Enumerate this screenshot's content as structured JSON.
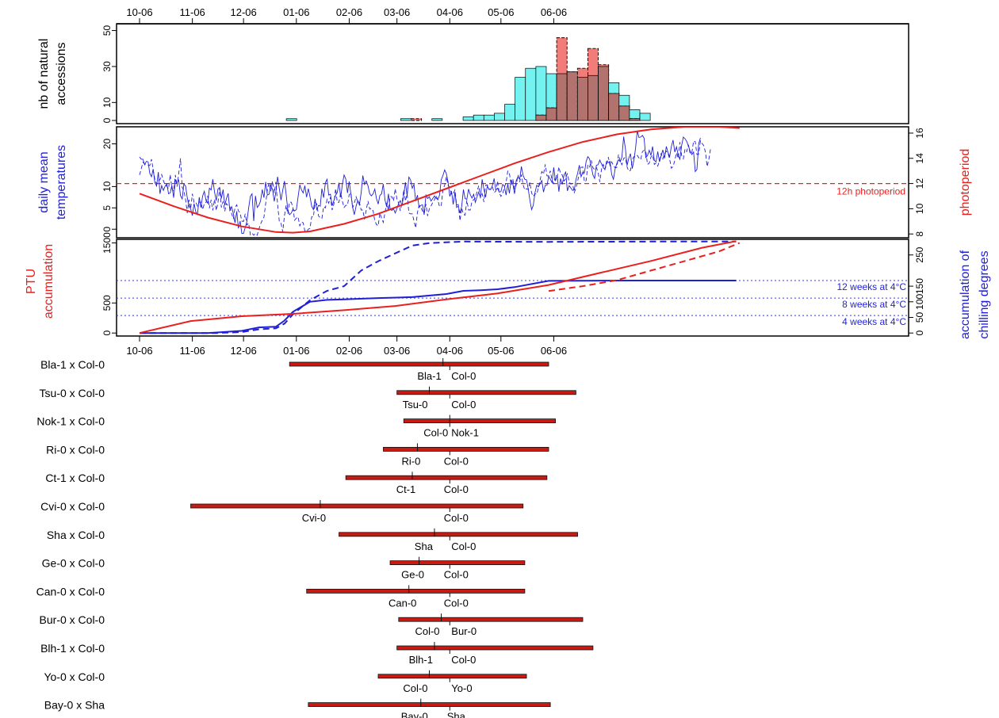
{
  "colors": {
    "temperature": "#1f1fd8",
    "photoperiod": "#e8201e",
    "hist_cyan": "#74f2f0",
    "hist_red": "#f27c78",
    "hist_overlap": "#b2736f",
    "bar_fill": "#c71a12",
    "ref_dotted": "#3a3ae0"
  },
  "date_ticks": [
    "10-06",
    "11-06",
    "12-06",
    "01-06",
    "02-06",
    "03-06",
    "04-06",
    "05-06",
    "06-06"
  ],
  "chart_data": [
    {
      "type": "bar",
      "panel": "histogram",
      "ylabel": [
        "nb of natural",
        "accessions"
      ],
      "yticks": [
        0,
        10,
        30,
        50
      ],
      "ylim": [
        0,
        52
      ],
      "bin_days": 6.1,
      "bin_start_day": 86.1,
      "series": [
        {
          "name_style": "cyan",
          "values": [
            1,
            0,
            0,
            0,
            0,
            0,
            0,
            0,
            0,
            0,
            0,
            1,
            0,
            0,
            1,
            0,
            0,
            2,
            3,
            3,
            4,
            9,
            24,
            29,
            30,
            26,
            26,
            27,
            24,
            25,
            30,
            21,
            14,
            6,
            4
          ]
        },
        {
          "name_style": "red",
          "values": [
            0,
            0,
            0,
            0,
            0,
            0,
            0,
            0,
            0,
            0,
            0,
            0,
            1,
            0,
            0,
            0,
            0,
            0,
            0,
            0,
            0,
            0,
            0,
            0,
            3,
            7,
            46,
            27,
            29,
            40,
            31,
            15,
            8,
            1,
            0
          ]
        }
      ]
    },
    {
      "type": "line",
      "panel": "temperature",
      "ylabel_left": [
        "daily mean",
        "temperatures"
      ],
      "ylabel_right": "photoperiod",
      "yticks_left": [
        0,
        5,
        10,
        20
      ],
      "yticks_right": [
        8,
        10,
        12,
        14,
        16
      ],
      "ylim_left": [
        -2,
        24
      ],
      "ylim_right": [
        7.7,
        16.5
      ],
      "annotation": "12h photoperiod",
      "photoperiod_ref": 12,
      "photoperiod_hours": {
        "days": [
          0,
          20,
          40,
          60,
          80,
          90,
          100,
          120,
          140,
          160,
          180,
          200,
          220,
          240,
          260,
          280,
          300,
          320,
          340,
          352
        ],
        "hours": [
          11.2,
          10.2,
          9.3,
          8.6,
          8.15,
          8.1,
          8.2,
          8.8,
          9.6,
          10.6,
          11.6,
          12.6,
          13.6,
          14.5,
          15.3,
          15.9,
          16.3,
          16.5,
          16.5,
          16.4
        ]
      },
      "temperature_solid": [
        16.9,
        16.4,
        16.4,
        15.1,
        15.9,
        15.8,
        13.1,
        12.3,
        14.1,
        10.9,
        10.1,
        13.4,
        8.3,
        10.2,
        9.1,
        10.1,
        10.6,
        8.3,
        8.5,
        10.3,
        7.4,
        11.6,
        10.9,
        11.5,
        7.9,
        7.1,
        10.6,
        10.1,
        7.4,
        5.4,
        4.8,
        3.2,
        6.0,
        4.1,
        3.5,
        7.5,
        5.1,
        7.8,
        8.9,
        6.7,
        6.1,
        9.6,
        9.2,
        11.7,
        8.7,
        6.7,
        9.4,
        9.8,
        7.2,
        9.3,
        5.6,
        7.2,
        8.4,
        4.4,
        5.3,
        3.7,
        1.5,
        4.2,
        0.2,
        1.9,
        -1.0,
        -1.0,
        0.4,
        1.8,
        5.0,
        7.7,
        8.3,
        1.9,
        7.8,
        5.1,
        5.6,
        6.6,
        9.3,
        7.4,
        11.1,
        8.0,
        8.2,
        10.4,
        9.3,
        6.5,
        8.8,
        12.3,
        9.5,
        6.8,
        9.1,
        11.3,
        8.2,
        4.5,
        3.4,
        3.8,
        4.7,
        4.3,
        4.6,
        7.5,
        10.4,
        9.2,
        8.5,
        10.2,
        7.5,
        9.5,
        7.6,
        5.4,
        4.6,
        7.1,
        4.6,
        5.6,
        5.4,
        9.5,
        7.4,
        10.9,
        11.7,
        8.0,
        8.2,
        5.5,
        6.7,
        8.0,
        8.6,
        10.9,
        7.5,
        10.6,
        12.7,
        11.8,
        8.5,
        11.2,
        8.2,
        5.1,
        3.4,
        5.4,
        6.7,
        5.7,
        8.5,
        12.6,
        10.5,
        11.3,
        10.2,
        8.3,
        7.8,
        8.3,
        9.4,
        7.2,
        5.9,
        7.9,
        8.3,
        10.6,
        6.8,
        5.2,
        8.3,
        4.7,
        4.4,
        4.8,
        3.8,
        4.8,
        6.1,
        6.7,
        5.5,
        8.2,
        11.0,
        7.8,
        12.2,
        11.6,
        9.6,
        10.5,
        6.6,
        8.0,
        5.1,
        5.6,
        5.7,
        3.4,
        8.0,
        7.2,
        7.6,
        6.6,
        7.2,
        7.8,
        7.3,
        6.9,
        8.0,
        11.6,
        12.6,
        13.9,
        13.0,
        11.1,
        7.7,
        8.9,
        5.8,
        8.7,
        5.1,
        5.4,
        3.8,
        5.3,
        9.3,
        7.2,
        7.0,
        9.4,
        8.1,
        7.3,
        8.2,
        6.3,
        7.6,
        8.7,
        7.4,
        11.7,
        9.4,
        7.5,
        10.1,
        9.4,
        9.3,
        10.2,
        11.9,
        9.2,
        9.6,
        8.7,
        8.8,
        10.5,
        10.1,
        8.0,
        10.6,
        8.4,
        11.6,
        10.6,
        8.3,
        11.4,
        12.3,
        11.7,
        14.7,
        12.6,
        11.7,
        11.6,
        9.5,
        6.8,
        4.6,
        5.6,
        8.6,
        10.3,
        9.9,
        10.7,
        11.4,
        8.7,
        10.3,
        10.3,
        12.4,
        11.7,
        10.9,
        14.5,
        11.3,
        12.6,
        8.8,
        11.9,
        10.5,
        12.7,
        13.4,
        9.0,
        10.2,
        9.7,
        9.1,
        9.2,
        11.6,
        13.1,
        15.0,
        12.3,
        13.3,
        13.2,
        15.9,
        17.0,
        16.5,
        14.6,
        12.7,
        11.9,
        15.0,
        15.1,
        16.2,
        15.3,
        14.5,
        14.0,
        15.9,
        15.6,
        15.9,
        12.8,
        11.7,
        14.2,
        15.4,
        16.3,
        15.8,
        16.9,
        21.7,
        18.9,
        14.9,
        16.6,
        17.7,
        14.2,
        16.1,
        19.0,
        23.1,
        21.5,
        21.6,
        22.0,
        21.3,
        16.8,
        17.3,
        18.5,
        17.3,
        19.4,
        16.1,
        15.8,
        18.2,
        15.8,
        17.3,
        18.6,
        16.6,
        19.4,
        18.0,
        17.0,
        19.4,
        20.9,
        18.1,
        19.3,
        17.3,
        16.4,
        19.6,
        21.6,
        21.2,
        20.6,
        19.5,
        18.3,
        17.5,
        18.1,
        13.5,
        14.0,
        20.0,
        21.4
      ],
      "temperature_dashed": [
        12.7,
        14.2,
        15.7,
        15.3,
        15.1,
        15.0,
        14.9,
        16.4,
        13.9,
        11.7,
        10.6,
        11.4,
        11.6,
        12.8,
        11.4,
        10.3,
        10.1,
        9.5,
        12.8,
        9.5,
        8.9,
        12.7,
        10.0,
        13.0,
        16.6,
        9.8,
        9.1,
        6.9,
        3.8,
        6.9,
        4.8,
        8.3,
        6.3,
        6.4,
        5.4,
        6.4,
        6.3,
        4.6,
        6.0,
        6.3,
        7.8,
        4.9,
        6.9,
        4.4,
        7.0,
        4.4,
        6.2,
        9.7,
        5.1,
        6.5,
        4.2,
        6.0,
        5.5,
        5.3,
        3.7,
        2.4,
        5.1,
        5.7,
        4.3,
        3.8,
        1.9,
        1.8,
        3.6,
        1.0,
        1.4,
        -1.3,
        -0.9,
        -1.4,
        -1.0,
        -1.4,
        0.0,
        1.2,
        2.1,
        2.8,
        6.0,
        9.3,
        10.9,
        8.9,
        11.3,
        8.5,
        11.1,
        5.8,
        1.8,
        1.5,
        -0.6,
        3.2,
        5.6,
        3.6,
        6.4,
        6.3,
        5.1,
        2.1,
        2.6,
        2.9,
        0.8,
        1.7,
        1.5,
        -0.4,
        -0.6,
        0.0,
        0.2,
        2.9,
        2.9,
        6.3,
        5.9,
        3.1,
        2.7,
        2.5,
        5.3,
        5.0,
        7.0,
        6.1,
        7.5,
        4.5,
        5.9,
        9.5,
        6.3,
        6.3,
        8.5,
        6.5,
        5.1,
        5.6,
        5.6,
        8.1,
        8.5,
        5.0,
        6.1,
        7.6,
        6.4,
        6.3,
        4.5,
        4.5,
        2.3,
        4.5,
        6.6,
        4.7,
        4.9,
        4.3,
        2.0,
        1.1,
        0.8,
        3.8,
        2.6,
        1.6,
        3.9,
        6.2,
        4.4,
        7.7,
        7.6,
        6.6,
        9.5,
        7.1,
        6.1,
        4.3,
        6.2,
        9.3,
        6.6,
        8.3,
        3.8,
        3.6,
        3.6,
        2.0,
        0.3,
        3.9,
        5.6,
        5.1,
        4.3,
        3.7,
        5.9,
        3.1,
        4.8,
        5.4,
        6.3,
        6.9,
        7.9,
        6.8,
        5.3,
        5.5,
        9.3,
        10.3,
        12.3,
        10.3,
        9.8,
        8.1,
        8.3,
        9.2,
        5.7,
        5.8,
        2.0,
        5.0,
        3.5,
        3.3,
        6.8,
        4.5,
        4.5,
        6.6,
        6.9,
        7.3,
        8.8,
        10.2,
        7.4,
        8.3,
        6.4,
        10.3,
        10.4,
        9.3,
        9.4,
        10.0,
        8.6,
        8.9,
        11.3,
        8.6,
        7.7,
        8.3,
        9.8,
        10.9,
        13.6,
        13.1,
        10.3,
        11.8,
        9.3,
        10.4,
        12.7,
        11.1,
        12.8,
        10.4,
        9.2,
        9.5,
        9.3,
        11.0,
        8.5,
        7.7,
        8.3,
        8.2,
        9.8,
        11.6,
        13.5,
        12.9,
        15.2,
        12.5,
        12.5,
        13.7,
        11.4,
        10.7,
        12.7,
        12.4,
        14.6,
        13.0,
        12.7,
        11.3,
        11.8,
        13.1,
        11.1,
        10.6,
        10.7,
        8.6,
        9.6,
        11.3,
        12.9,
        14.5,
        14.6,
        11.1,
        11.4,
        15.1,
        14.6,
        16.1,
        14.4,
        14.0,
        14.5,
        13.3,
        11.1,
        14.0,
        15.2,
        14.0,
        15.2,
        16.9,
        14.9,
        15.8,
        14.9,
        14.4,
        14.5,
        17.5,
        15.9,
        15.1,
        16.6,
        16.8,
        14.6,
        13.6,
        13.8,
        16.3,
        17.0,
        16.9,
        17.3,
        16.7,
        16.3,
        18.2,
        18.5,
        18.3,
        15.2,
        15.5,
        16.9,
        17.4,
        15.2,
        15.5,
        14.8,
        16.0,
        17.8,
        16.5,
        17.7,
        18.3,
        17.8,
        16.4,
        14.3,
        14.7,
        16.1,
        17.9,
        16.6,
        20.4,
        17.3,
        16.5,
        18.8,
        18.2,
        19.8,
        17.7,
        17.9,
        20.7,
        20.5,
        17.5,
        17.6,
        20.7,
        20.1,
        19.6,
        18.0,
        14.7,
        16.4,
        19.0
      ]
    },
    {
      "type": "line",
      "panel": "accumulation",
      "ylabel_left": [
        "PTU",
        "accumulation"
      ],
      "ylabel_right": [
        "accumulation of",
        "chilling degrees"
      ],
      "yticks_left": [
        0,
        500,
        1500
      ],
      "yticks_right": [
        0,
        50,
        100,
        150,
        250
      ],
      "ylim_left": [
        -50,
        1560
      ],
      "ylim_right": [
        -9.6,
        300
      ],
      "reference_lines": [
        {
          "label": "12 weeks at 4°C",
          "chill": 168
        },
        {
          "label": "8 weeks at 4°C",
          "chill": 112
        },
        {
          "label": "4 weeks at 4°C",
          "chill": 56
        }
      ],
      "ptu_solid": {
        "days": [
          0,
          30,
          60,
          90,
          120,
          150,
          180,
          210,
          240,
          270,
          300,
          330,
          350
        ],
        "values": [
          0,
          200,
          280,
          320,
          380,
          450,
          560,
          660,
          800,
          1000,
          1200,
          1420,
          1530
        ]
      },
      "ptu_dashed": {
        "days": [
          240,
          260,
          280,
          300,
          320,
          340,
          352
        ],
        "values": [
          700,
          780,
          880,
          1040,
          1200,
          1360,
          1500
        ]
      },
      "chill_solid": {
        "days": [
          0,
          40,
          60,
          70,
          80,
          85,
          90,
          100,
          110,
          120,
          140,
          160,
          180,
          190,
          200,
          210,
          220,
          240,
          290,
          350
        ],
        "values": [
          0,
          0,
          7,
          18,
          20,
          40,
          68,
          100,
          106,
          108,
          112,
          115,
          125,
          135,
          137,
          140,
          147,
          167,
          168,
          168
        ]
      },
      "chill_dashed": {
        "days": [
          0,
          45,
          60,
          70,
          80,
          85,
          90,
          100,
          110,
          120,
          130,
          140,
          150,
          160,
          170,
          190,
          240,
          300,
          350
        ],
        "values": [
          0,
          0,
          3,
          12,
          15,
          30,
          60,
          105,
          135,
          150,
          200,
          230,
          255,
          280,
          288,
          293,
          292,
          293,
          293
        ]
      }
    }
  ],
  "crosses": [
    {
      "label": "Bla-1 x Col-0",
      "start": 88,
      "end": 240,
      "qtl": 178,
      "left_name": "Bla-1",
      "right_name": "Col-0"
    },
    {
      "label": "Tsu-0 x Col-0",
      "start": 151,
      "end": 256,
      "qtl": 170,
      "left_name": "Tsu-0",
      "right_name": "Col-0"
    },
    {
      "label": "Nok-1 x Col-0",
      "start": 155,
      "end": 244,
      "qtl": 182,
      "left_name": "Col-0",
      "right_name": "Nok-1"
    },
    {
      "label": "Ri-0 x Col-0",
      "start": 143,
      "end": 240,
      "qtl": 163,
      "left_name": "Ri-0",
      "right_name": "Col-0"
    },
    {
      "label": "Ct-1 x Col-0",
      "start": 121,
      "end": 239,
      "qtl": 160,
      "left_name": "Ct-1",
      "right_name": "Col-0"
    },
    {
      "label": "Cvi-0 x Col-0",
      "start": 30,
      "end": 225,
      "qtl": 106,
      "left_name": "Cvi-0",
      "right_name": "Col-0"
    },
    {
      "label": "Sha x Col-0",
      "start": 117,
      "end": 257,
      "qtl": 173,
      "left_name": "Sha",
      "right_name": "Col-0"
    },
    {
      "label": "Ge-0 x Col-0",
      "start": 147,
      "end": 226,
      "qtl": 164,
      "left_name": "Ge-0",
      "right_name": "Col-0"
    },
    {
      "label": "Can-0 x Col-0",
      "start": 98,
      "end": 226,
      "qtl": 158,
      "left_name": "Can-0",
      "right_name": "Col-0"
    },
    {
      "label": "Bur-0 x Col-0",
      "start": 152,
      "end": 260,
      "qtl": 177,
      "left_name": "Col-0",
      "right_name": "Bur-0"
    },
    {
      "label": "Blh-1 x Col-0",
      "start": 151,
      "end": 266,
      "qtl": 173,
      "left_name": "Blh-1",
      "right_name": "Col-0"
    },
    {
      "label": "Yo-0 x Col-0",
      "start": 140,
      "end": 227,
      "qtl": 170,
      "left_name": "Col-0",
      "right_name": "Yo-0"
    },
    {
      "label": "Bay-0 x Sha",
      "start": 99,
      "end": 241,
      "qtl": 165,
      "left_name": "Bay-0",
      "right_name": "Sha"
    }
  ]
}
